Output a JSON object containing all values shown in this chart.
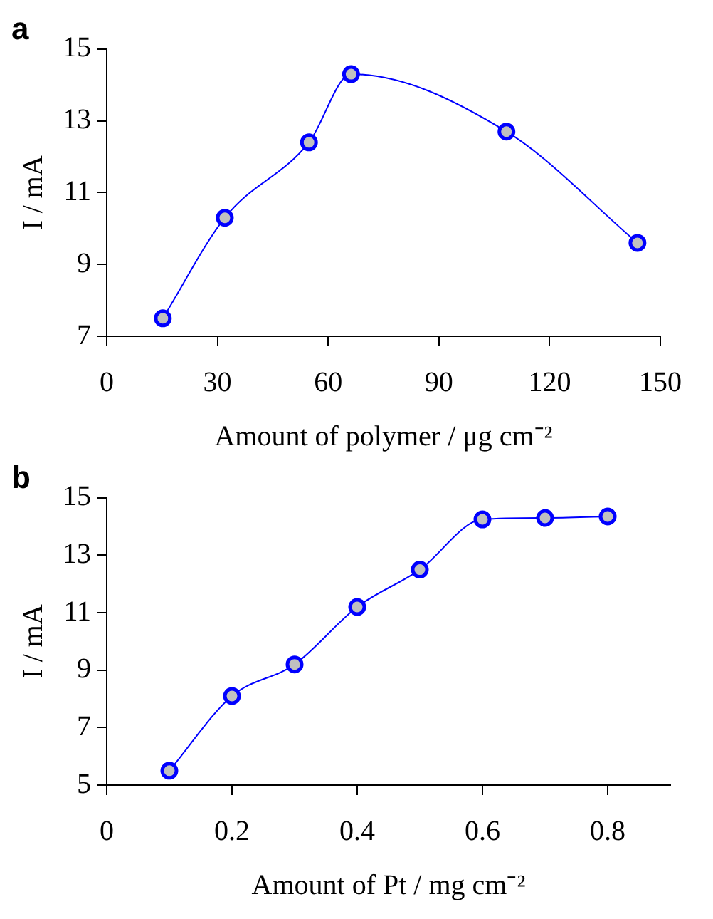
{
  "chart_data": [
    {
      "type": "line",
      "title": "a",
      "xlabel": "Amount of polymer / μg cm⁻²",
      "ylabel": "I / mA",
      "series": [
        {
          "color": "#0000ff",
          "x": [
            15.2,
            32,
            54.8,
            66.2,
            108.3,
            143.8
          ],
          "values": [
            7.5,
            10.3,
            12.4,
            14.3,
            12.7,
            9.6
          ]
        }
      ],
      "xlim": [
        0,
        150
      ],
      "xticks": [
        0,
        30,
        60,
        90,
        120,
        150
      ],
      "ylim": [
        7,
        15
      ],
      "yticks": [
        7,
        9,
        11,
        13,
        15
      ],
      "grid": false,
      "legend": false,
      "marker": "circle",
      "line_style": "solid"
    },
    {
      "type": "line",
      "title": "b",
      "xlabel": "Amount of Pt / mg cm⁻²",
      "ylabel": "I / mA",
      "series": [
        {
          "color": "#0000ff",
          "x": [
            0.1,
            0.2,
            0.3,
            0.4,
            0.5,
            0.6,
            0.7,
            0.8
          ],
          "values": [
            5.5,
            8.1,
            9.2,
            11.2,
            12.5,
            14.25,
            14.3,
            14.35
          ]
        }
      ],
      "xlim": [
        0,
        0.9
      ],
      "xticks": [
        0,
        0.2,
        0.4,
        0.6,
        0.8
      ],
      "ylim": [
        5,
        15
      ],
      "yticks": [
        5,
        7,
        9,
        11,
        13,
        15
      ],
      "grid": false,
      "legend": false,
      "marker": "circle",
      "line_style": "solid"
    }
  ]
}
